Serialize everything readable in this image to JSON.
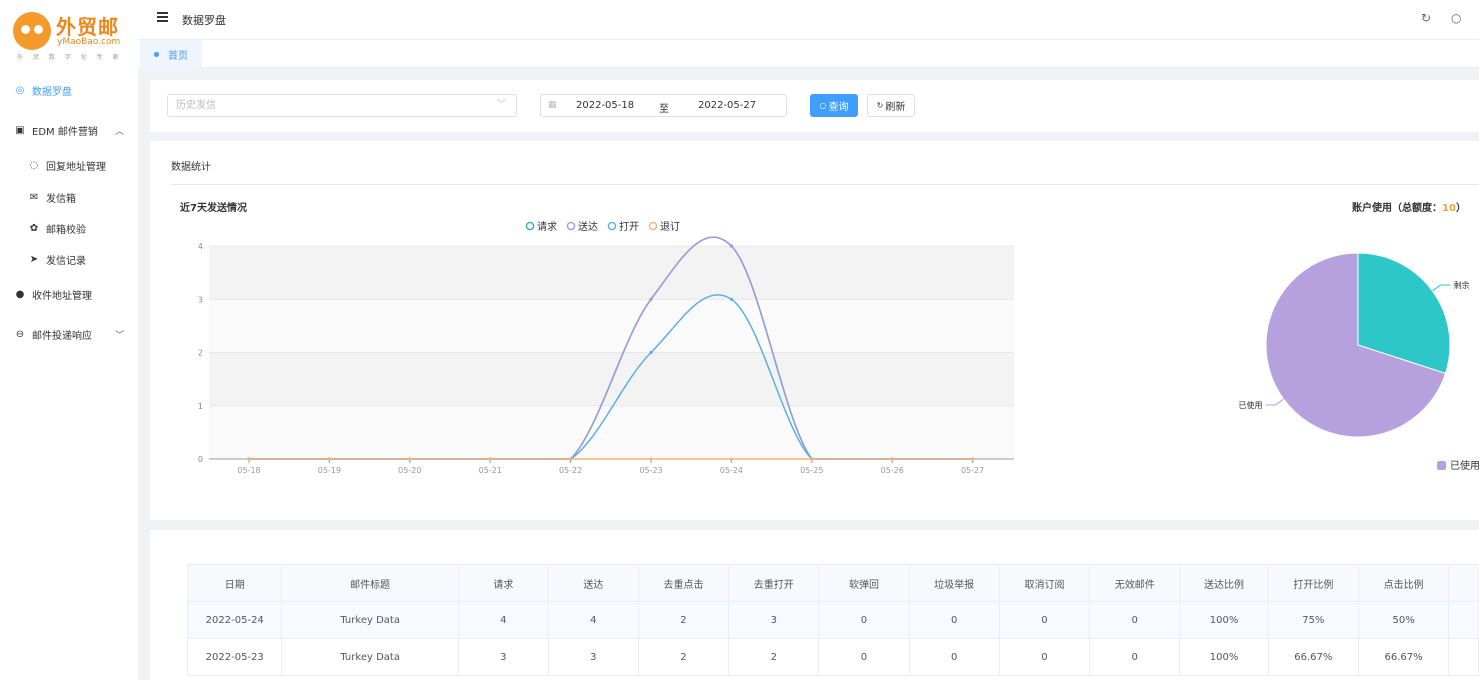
{
  "brand": {
    "name_cn": "外贸邮",
    "name_en": "yMaoBao.com",
    "slogan": "外 贸 数 字 化 专 家"
  },
  "sidebar": {
    "items": [
      {
        "label": "数据罗盘",
        "icon": "compass-icon",
        "active": true
      },
      {
        "label": "EDM 邮件营销",
        "icon": "inbox-icon",
        "expanded": true
      },
      {
        "label": "回复地址管理",
        "icon": "chat-icon",
        "sub": true
      },
      {
        "label": "发信箱",
        "icon": "mail-icon",
        "sub": true
      },
      {
        "label": "邮箱校验",
        "icon": "gear-icon",
        "sub": true
      },
      {
        "label": "发信记录",
        "icon": "send-icon",
        "sub": true
      },
      {
        "label": "收件地址管理",
        "icon": "user-icon"
      },
      {
        "label": "邮件投递响应",
        "icon": "response-icon",
        "expanded": false
      }
    ]
  },
  "header": {
    "title": "数据罗盘"
  },
  "tabs": [
    {
      "label": "首页",
      "active": true
    }
  ],
  "filter": {
    "select_placeholder": "历史发信",
    "date_start": "2022-05-18",
    "date_sep": "至",
    "date_end": "2022-05-27",
    "query_label": "查询",
    "refresh_label": "刷新"
  },
  "stats": {
    "title": "数据统计"
  },
  "colors": {
    "primary": "#409eff",
    "request": "#3ba6c8",
    "delivered": "#9d9cd6",
    "opened": "#5bb0e0",
    "unsubscribed": "#f2b57a",
    "used": "#b7a0de",
    "remaining": "#2ec7c9"
  },
  "chart_data": [
    {
      "type": "line",
      "title": "近7天发送情况",
      "x": [
        "05-18",
        "05-19",
        "05-20",
        "05-21",
        "05-22",
        "05-23",
        "05-24",
        "05-25",
        "05-26",
        "05-27"
      ],
      "series": [
        {
          "name": "请求",
          "values": [
            0,
            0,
            0,
            0,
            0,
            3,
            4,
            0,
            0,
            0
          ]
        },
        {
          "name": "送达",
          "values": [
            0,
            0,
            0,
            0,
            0,
            3,
            4,
            0,
            0,
            0
          ]
        },
        {
          "name": "打开",
          "values": [
            0,
            0,
            0,
            0,
            0,
            2,
            3,
            0,
            0,
            0
          ]
        },
        {
          "name": "退订",
          "values": [
            0,
            0,
            0,
            0,
            0,
            0,
            0,
            0,
            0,
            0
          ]
        }
      ],
      "ylim": [
        0,
        4
      ],
      "yticks": [
        "0",
        "1",
        "2",
        "3",
        "4"
      ],
      "smooth": true,
      "legend": "top-center"
    },
    {
      "type": "pie",
      "title_prefix": "账户使用（总额度：",
      "title_total": "10",
      "title_suffix": "）",
      "labels": [
        "已使用",
        "剩余"
      ],
      "values": [
        7,
        3
      ],
      "legend": "bottom"
    }
  ],
  "table": {
    "columns": [
      "日期",
      "邮件标题",
      "请求",
      "送达",
      "去重点击",
      "去重打开",
      "软弹回",
      "垃圾举报",
      "取消订阅",
      "无效邮件",
      "送达比例",
      "打开比例",
      "点击比例"
    ],
    "rows": [
      [
        "2022-05-24",
        "Turkey Data",
        "4",
        "4",
        "2",
        "3",
        "0",
        "0",
        "0",
        "0",
        "100%",
        "75%",
        "50%"
      ],
      [
        "2022-05-23",
        "Turkey Data",
        "3",
        "3",
        "2",
        "2",
        "0",
        "0",
        "0",
        "0",
        "100%",
        "66.67%",
        "66.67%"
      ]
    ]
  }
}
